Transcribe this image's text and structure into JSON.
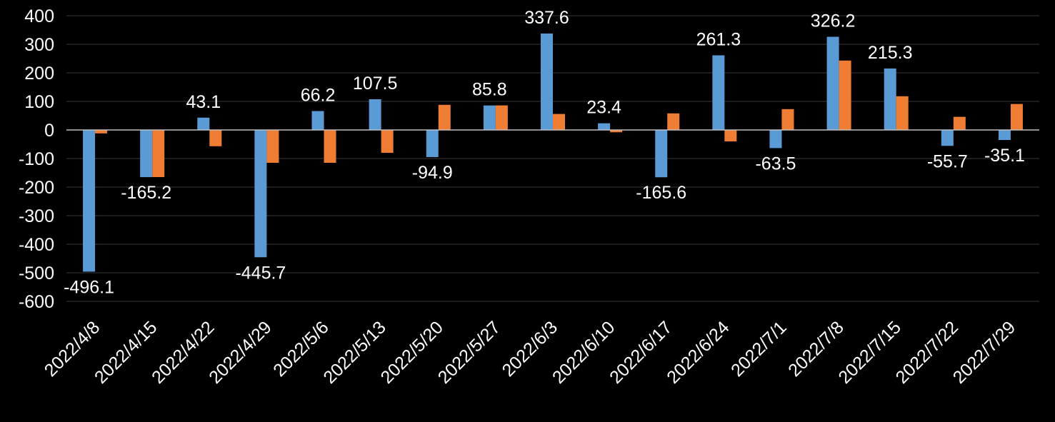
{
  "chart_data": {
    "type": "bar",
    "categories": [
      "2022/4/8",
      "2022/4/15",
      "2022/4/22",
      "2022/4/29",
      "2022/5/6",
      "2022/5/13",
      "2022/5/20",
      "2022/5/27",
      "2022/6/3",
      "2022/6/10",
      "2022/6/17",
      "2022/6/24",
      "2022/7/1",
      "2022/7/8",
      "2022/7/15",
      "2022/7/22",
      "2022/7/29"
    ],
    "series": [
      {
        "color": "#5b9bd5",
        "values": [
          -496.1,
          -165.2,
          43.1,
          -445.7,
          66.2,
          107.5,
          -94.9,
          85.8,
          337.6,
          23.4,
          -165.6,
          261.3,
          -63.5,
          326.2,
          215.3,
          -55.7,
          -35.1
        ],
        "labels": [
          "-496.1",
          "-165.2",
          "43.1",
          "-445.7",
          "66.2",
          "107.5",
          "-94.9",
          "85.8",
          "337.6",
          "23.4",
          "-165.6",
          "261.3",
          "-63.5",
          "326.2",
          "215.3",
          "-55.7",
          "-35.1"
        ]
      },
      {
        "color": "#f07d34",
        "values": [
          -12,
          -165,
          -57,
          -115,
          -115,
          -80,
          88,
          86,
          56,
          -8,
          58,
          -40,
          73,
          243,
          118,
          46,
          91
        ]
      }
    ],
    "ylim": [
      -600,
      400
    ],
    "yticks": [
      "400",
      "300",
      "200",
      "100",
      "0",
      "-100",
      "-200",
      "-300",
      "-400",
      "-500",
      "-600"
    ],
    "grid": true,
    "legend": "none",
    "background": "#000000",
    "gridColor": "#3a3a3a"
  }
}
